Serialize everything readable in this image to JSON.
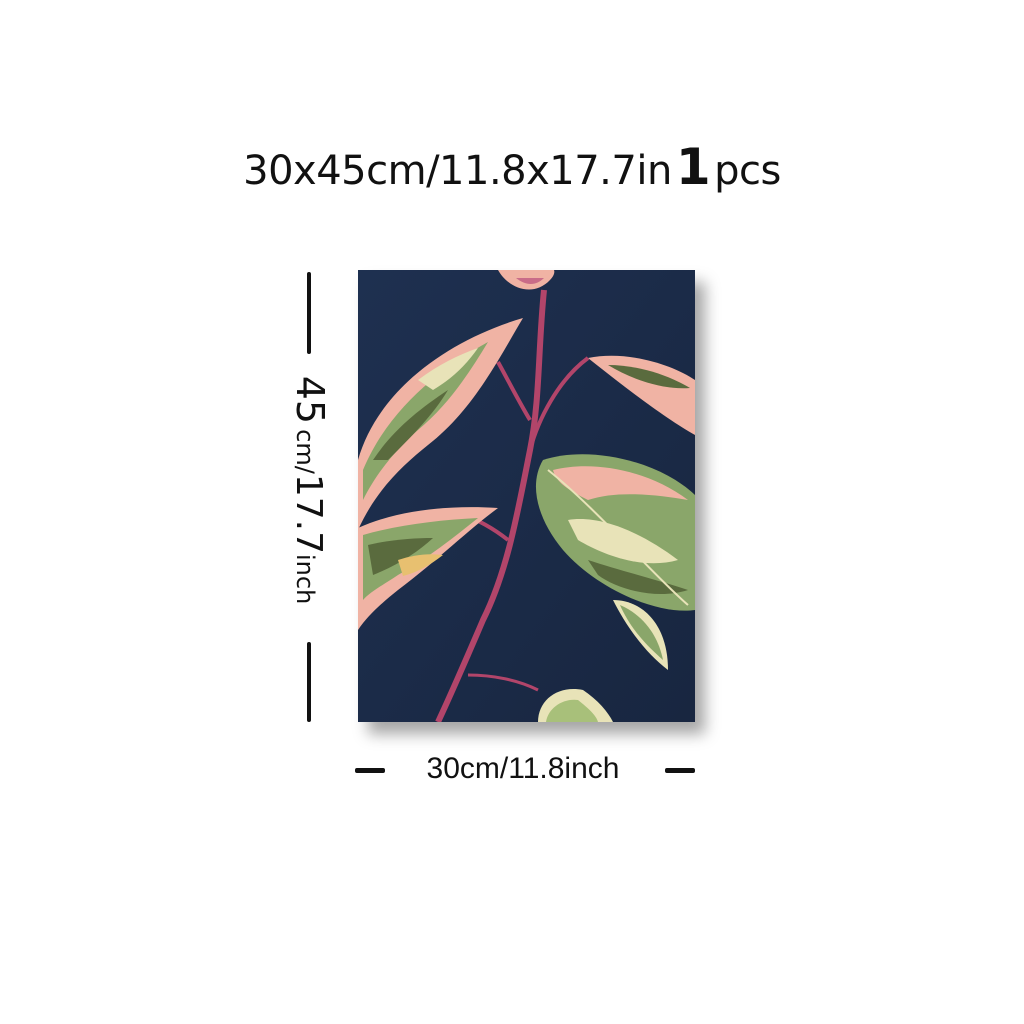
{
  "header": {
    "dimensions": "30x45cm/11.8x17.7in",
    "quantity": "1",
    "quantity_unit": "pcs"
  },
  "vertical_measure": {
    "number": "45",
    "cm_part": "cm/",
    "inch_value": "17.7",
    "inch_unit": "inch"
  },
  "horizontal_measure": {
    "label": "30cm/11.8inch"
  },
  "artwork": {
    "colors": {
      "background": "#1b2b45",
      "stem": "#b2456a",
      "leaf_green": "#8aa66a",
      "leaf_pink": "#f0b3a4",
      "leaf_cream": "#e8e3b8",
      "leaf_dark": "#5a6b3e"
    }
  }
}
